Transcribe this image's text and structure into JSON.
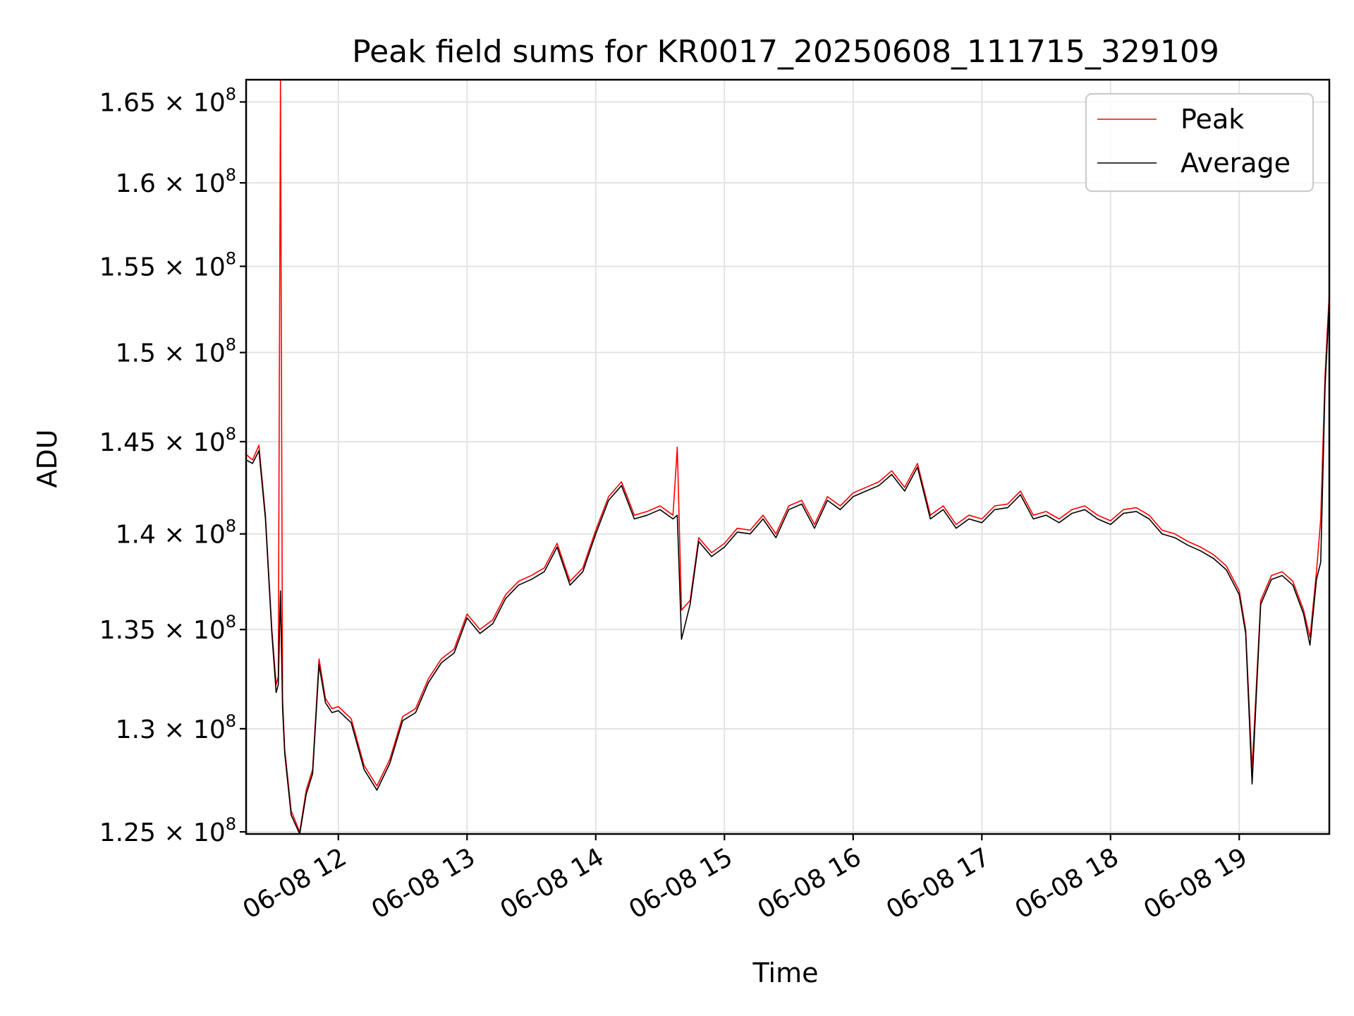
{
  "chart_data": {
    "type": "line",
    "title": "Peak field sums for KR0017_20250608_111715_329109",
    "xlabel": "Time",
    "ylabel": "ADU",
    "x_ticks": [
      {
        "value": "2025-06-08T12:00",
        "label": "06-08 12"
      },
      {
        "value": "2025-06-08T13:00",
        "label": "06-08 13"
      },
      {
        "value": "2025-06-08T14:00",
        "label": "06-08 14"
      },
      {
        "value": "2025-06-08T15:00",
        "label": "06-08 15"
      },
      {
        "value": "2025-06-08T16:00",
        "label": "06-08 16"
      },
      {
        "value": "2025-06-08T17:00",
        "label": "06-08 17"
      },
      {
        "value": "2025-06-08T18:00",
        "label": "06-08 18"
      },
      {
        "value": "2025-06-08T19:00",
        "label": "06-08 19"
      }
    ],
    "y_ticks": [
      {
        "value": 125000000,
        "mantissa": "1.25",
        "exp": "8"
      },
      {
        "value": 130000000,
        "mantissa": "1.3",
        "exp": "8"
      },
      {
        "value": 135000000,
        "mantissa": "1.35",
        "exp": "8"
      },
      {
        "value": 140000000,
        "mantissa": "1.4",
        "exp": "8"
      },
      {
        "value": 145000000,
        "mantissa": "1.45",
        "exp": "8"
      },
      {
        "value": 150000000,
        "mantissa": "1.5",
        "exp": "8"
      },
      {
        "value": 155000000,
        "mantissa": "1.55",
        "exp": "8"
      },
      {
        "value": 160000000,
        "mantissa": "1.6",
        "exp": "8"
      },
      {
        "value": 165000000,
        "mantissa": "1.65",
        "exp": "8"
      }
    ],
    "xlim": [
      "2025-06-08T11:17",
      "2025-06-08T19:42"
    ],
    "ylim": [
      124900000,
      166400000
    ],
    "y_scale": "log",
    "grid": true,
    "legend_position": "top-right",
    "series": [
      {
        "name": "Peak",
        "color": "#ff0000",
        "x": [
          "2025-06-08T11:17",
          "2025-06-08T11:20",
          "2025-06-08T11:23",
          "2025-06-08T11:26",
          "2025-06-08T11:29",
          "2025-06-08T11:31",
          "2025-06-08T11:32",
          "2025-06-08T11:33",
          "2025-06-08T11:34",
          "2025-06-08T11:35",
          "2025-06-08T11:38",
          "2025-06-08T11:42",
          "2025-06-08T11:45",
          "2025-06-08T11:48",
          "2025-06-08T11:51",
          "2025-06-08T11:54",
          "2025-06-08T11:57",
          "2025-06-08T12:00",
          "2025-06-08T12:06",
          "2025-06-08T12:12",
          "2025-06-08T12:18",
          "2025-06-08T12:24",
          "2025-06-08T12:30",
          "2025-06-08T12:36",
          "2025-06-08T12:42",
          "2025-06-08T12:48",
          "2025-06-08T12:54",
          "2025-06-08T13:00",
          "2025-06-08T13:06",
          "2025-06-08T13:12",
          "2025-06-08T13:18",
          "2025-06-08T13:24",
          "2025-06-08T13:30",
          "2025-06-08T13:36",
          "2025-06-08T13:42",
          "2025-06-08T13:48",
          "2025-06-08T13:54",
          "2025-06-08T14:00",
          "2025-06-08T14:06",
          "2025-06-08T14:12",
          "2025-06-08T14:18",
          "2025-06-08T14:24",
          "2025-06-08T14:30",
          "2025-06-08T14:36",
          "2025-06-08T14:38",
          "2025-06-08T14:40",
          "2025-06-08T14:44",
          "2025-06-08T14:48",
          "2025-06-08T14:54",
          "2025-06-08T15:00",
          "2025-06-08T15:06",
          "2025-06-08T15:12",
          "2025-06-08T15:18",
          "2025-06-08T15:24",
          "2025-06-08T15:30",
          "2025-06-08T15:36",
          "2025-06-08T15:42",
          "2025-06-08T15:48",
          "2025-06-08T15:54",
          "2025-06-08T16:00",
          "2025-06-08T16:06",
          "2025-06-08T16:12",
          "2025-06-08T16:18",
          "2025-06-08T16:24",
          "2025-06-08T16:30",
          "2025-06-08T16:36",
          "2025-06-08T16:42",
          "2025-06-08T16:48",
          "2025-06-08T16:54",
          "2025-06-08T17:00",
          "2025-06-08T17:06",
          "2025-06-08T17:12",
          "2025-06-08T17:18",
          "2025-06-08T17:24",
          "2025-06-08T17:30",
          "2025-06-08T17:36",
          "2025-06-08T17:42",
          "2025-06-08T17:48",
          "2025-06-08T17:54",
          "2025-06-08T18:00",
          "2025-06-08T18:06",
          "2025-06-08T18:12",
          "2025-06-08T18:18",
          "2025-06-08T18:24",
          "2025-06-08T18:30",
          "2025-06-08T18:36",
          "2025-06-08T18:42",
          "2025-06-08T18:48",
          "2025-06-08T18:54",
          "2025-06-08T19:00",
          "2025-06-08T19:03",
          "2025-06-08T19:06",
          "2025-06-08T19:10",
          "2025-06-08T19:15",
          "2025-06-08T19:20",
          "2025-06-08T19:25",
          "2025-06-08T19:30",
          "2025-06-08T19:33",
          "2025-06-08T19:36",
          "2025-06-08T19:38",
          "2025-06-08T19:40",
          "2025-06-08T19:42"
        ],
        "values": [
          144300000,
          144000000,
          144800000,
          141000000,
          135000000,
          132200000,
          132600000,
          166400000,
          131500000,
          129000000,
          126000000,
          125000000,
          127000000,
          128000000,
          133500000,
          131500000,
          131000000,
          131100000,
          130500000,
          128200000,
          127200000,
          128500000,
          130600000,
          131000000,
          132500000,
          133500000,
          134000000,
          135800000,
          135000000,
          135500000,
          136800000,
          137500000,
          137800000,
          138200000,
          139500000,
          137500000,
          138200000,
          140200000,
          142000000,
          142800000,
          141000000,
          141200000,
          141500000,
          141000000,
          144700000,
          136000000,
          136500000,
          139800000,
          139000000,
          139500000,
          140300000,
          140200000,
          141000000,
          140000000,
          141500000,
          141800000,
          140500000,
          142000000,
          141500000,
          142200000,
          142500000,
          142800000,
          143400000,
          142500000,
          143800000,
          141000000,
          141500000,
          140500000,
          141000000,
          140800000,
          141500000,
          141600000,
          142300000,
          141000000,
          141200000,
          140800000,
          141300000,
          141500000,
          141000000,
          140700000,
          141300000,
          141400000,
          141000000,
          140200000,
          140000000,
          139600000,
          139300000,
          138900000,
          138300000,
          137000000,
          135000000,
          128000000,
          136500000,
          137800000,
          138000000,
          137500000,
          136000000,
          134600000,
          138000000,
          140800000,
          148700000,
          153500000
        ]
      },
      {
        "name": "Average",
        "color": "#000000",
        "x": [
          "2025-06-08T11:17",
          "2025-06-08T11:20",
          "2025-06-08T11:23",
          "2025-06-08T11:26",
          "2025-06-08T11:29",
          "2025-06-08T11:31",
          "2025-06-08T11:32",
          "2025-06-08T11:33",
          "2025-06-08T11:34",
          "2025-06-08T11:35",
          "2025-06-08T11:38",
          "2025-06-08T11:42",
          "2025-06-08T11:45",
          "2025-06-08T11:48",
          "2025-06-08T11:51",
          "2025-06-08T11:54",
          "2025-06-08T11:57",
          "2025-06-08T12:00",
          "2025-06-08T12:06",
          "2025-06-08T12:12",
          "2025-06-08T12:18",
          "2025-06-08T12:24",
          "2025-06-08T12:30",
          "2025-06-08T12:36",
          "2025-06-08T12:42",
          "2025-06-08T12:48",
          "2025-06-08T12:54",
          "2025-06-08T13:00",
          "2025-06-08T13:06",
          "2025-06-08T13:12",
          "2025-06-08T13:18",
          "2025-06-08T13:24",
          "2025-06-08T13:30",
          "2025-06-08T13:36",
          "2025-06-08T13:42",
          "2025-06-08T13:48",
          "2025-06-08T13:54",
          "2025-06-08T14:00",
          "2025-06-08T14:06",
          "2025-06-08T14:12",
          "2025-06-08T14:18",
          "2025-06-08T14:24",
          "2025-06-08T14:30",
          "2025-06-08T14:36",
          "2025-06-08T14:38",
          "2025-06-08T14:40",
          "2025-06-08T14:44",
          "2025-06-08T14:48",
          "2025-06-08T14:54",
          "2025-06-08T15:00",
          "2025-06-08T15:06",
          "2025-06-08T15:12",
          "2025-06-08T15:18",
          "2025-06-08T15:24",
          "2025-06-08T15:30",
          "2025-06-08T15:36",
          "2025-06-08T15:42",
          "2025-06-08T15:48",
          "2025-06-08T15:54",
          "2025-06-08T16:00",
          "2025-06-08T16:06",
          "2025-06-08T16:12",
          "2025-06-08T16:18",
          "2025-06-08T16:24",
          "2025-06-08T16:30",
          "2025-06-08T16:36",
          "2025-06-08T16:42",
          "2025-06-08T16:48",
          "2025-06-08T16:54",
          "2025-06-08T17:00",
          "2025-06-08T17:06",
          "2025-06-08T17:12",
          "2025-06-08T17:18",
          "2025-06-08T17:24",
          "2025-06-08T17:30",
          "2025-06-08T17:36",
          "2025-06-08T17:42",
          "2025-06-08T17:48",
          "2025-06-08T17:54",
          "2025-06-08T18:00",
          "2025-06-08T18:06",
          "2025-06-08T18:12",
          "2025-06-08T18:18",
          "2025-06-08T18:24",
          "2025-06-08T18:30",
          "2025-06-08T18:36",
          "2025-06-08T18:42",
          "2025-06-08T18:48",
          "2025-06-08T18:54",
          "2025-06-08T19:00",
          "2025-06-08T19:03",
          "2025-06-08T19:06",
          "2025-06-08T19:10",
          "2025-06-08T19:15",
          "2025-06-08T19:20",
          "2025-06-08T19:25",
          "2025-06-08T19:30",
          "2025-06-08T19:33",
          "2025-06-08T19:36",
          "2025-06-08T19:38",
          "2025-06-08T19:40",
          "2025-06-08T19:42"
        ],
        "values": [
          144000000,
          143800000,
          144500000,
          140800000,
          134800000,
          131800000,
          132200000,
          137000000,
          131000000,
          128800000,
          125800000,
          124900000,
          126800000,
          127800000,
          133200000,
          131300000,
          130800000,
          130900000,
          130300000,
          128000000,
          127000000,
          128300000,
          130400000,
          130800000,
          132300000,
          133300000,
          133800000,
          135600000,
          134800000,
          135300000,
          136600000,
          137300000,
          137600000,
          138000000,
          139300000,
          137300000,
          138000000,
          140000000,
          141800000,
          142600000,
          140800000,
          141000000,
          141300000,
          140800000,
          141000000,
          134500000,
          136300000,
          139600000,
          138800000,
          139300000,
          140100000,
          140000000,
          140800000,
          139800000,
          141300000,
          141600000,
          140300000,
          141800000,
          141300000,
          142000000,
          142300000,
          142600000,
          143200000,
          142300000,
          143600000,
          140800000,
          141300000,
          140300000,
          140800000,
          140600000,
          141300000,
          141400000,
          142100000,
          140800000,
          141000000,
          140600000,
          141100000,
          141300000,
          140800000,
          140500000,
          141100000,
          141200000,
          140800000,
          140000000,
          139800000,
          139400000,
          139100000,
          138700000,
          138100000,
          136800000,
          134800000,
          127300000,
          136300000,
          137600000,
          137800000,
          137300000,
          135800000,
          134200000,
          137600000,
          138500000,
          148000000,
          153000000
        ]
      }
    ]
  }
}
